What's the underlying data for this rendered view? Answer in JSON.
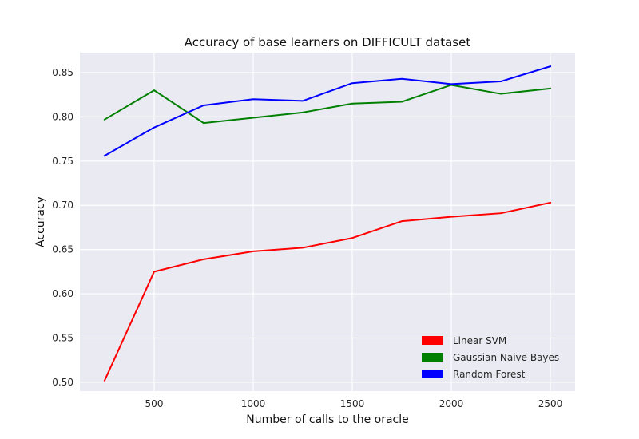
{
  "chart_data": {
    "type": "line",
    "title": "Accuracy of base learners on DIFFICULT dataset",
    "xlabel": "Number of calls to the oracle",
    "ylabel": "Accuracy",
    "x": [
      250,
      500,
      750,
      1000,
      1250,
      1500,
      1750,
      2000,
      2250,
      2500
    ],
    "xlim": [
      125,
      2625
    ],
    "ylim": [
      0.49,
      0.8725
    ],
    "xticks": [
      500,
      1000,
      1500,
      2000,
      2500
    ],
    "xtick_labels": [
      "500",
      "1000",
      "1500",
      "2000",
      "2500"
    ],
    "yticks": [
      0.5,
      0.55,
      0.6,
      0.65,
      0.7,
      0.75,
      0.8,
      0.85
    ],
    "ytick_labels": [
      "0.50",
      "0.55",
      "0.60",
      "0.65",
      "0.70",
      "0.75",
      "0.80",
      "0.85"
    ],
    "grid": true,
    "legend_position": "lower-right",
    "series": [
      {
        "name": "Linear SVM",
        "color": "#ff0000",
        "values": [
          0.502,
          0.625,
          0.639,
          0.648,
          0.652,
          0.663,
          0.682,
          0.687,
          0.691,
          0.703
        ]
      },
      {
        "name": "Gaussian Naive Bayes",
        "color": "#008000",
        "values": [
          0.797,
          0.83,
          0.793,
          0.799,
          0.805,
          0.815,
          0.817,
          0.836,
          0.826,
          0.832
        ]
      },
      {
        "name": "Random Forest",
        "color": "#0000ff",
        "values": [
          0.756,
          0.788,
          0.813,
          0.82,
          0.818,
          0.838,
          0.843,
          0.837,
          0.84,
          0.857
        ]
      }
    ]
  }
}
